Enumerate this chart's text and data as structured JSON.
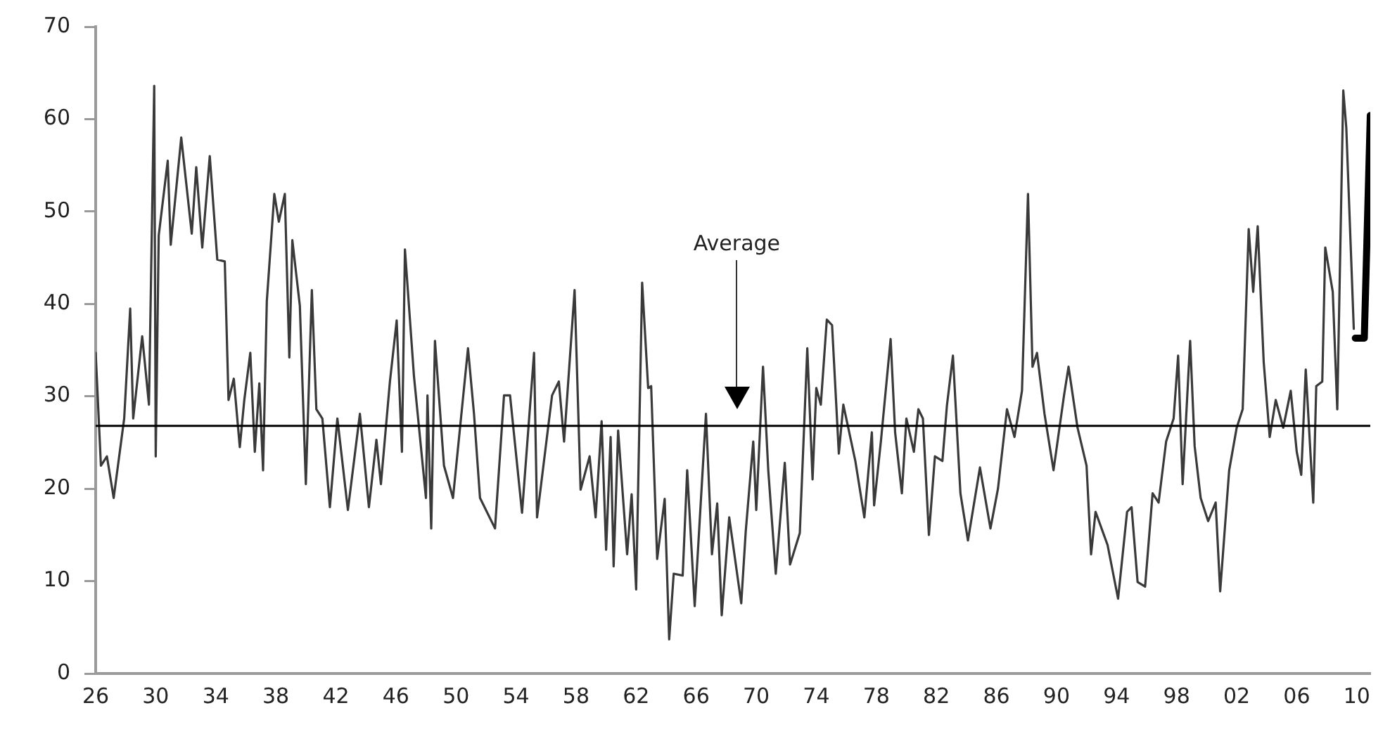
{
  "chart_data": {
    "type": "line",
    "series": [
      {
        "color": "#3a3a3a",
        "x": [
          1926.0,
          1926.35,
          1926.75,
          1927.2,
          1927.9,
          1928.3,
          1928.5,
          1929.1,
          1929.55,
          1929.9,
          1930.0,
          1930.2,
          1930.8,
          1931.0,
          1931.7,
          1932.4,
          1932.7,
          1933.1,
          1933.6,
          1934.1,
          1934.6,
          1934.85,
          1935.2,
          1935.6,
          1935.9,
          1936.3,
          1936.6,
          1936.9,
          1937.15,
          1937.4,
          1937.9,
          1938.2,
          1938.6,
          1938.9,
          1939.1,
          1939.6,
          1940.0,
          1940.4,
          1940.7,
          1941.1,
          1941.6,
          1942.1,
          1942.8,
          1943.6,
          1944.2,
          1944.7,
          1945.0,
          1945.6,
          1946.05,
          1946.4,
          1946.6,
          1947.2,
          1948.0,
          1948.1,
          1948.35,
          1948.6,
          1949.2,
          1949.8,
          1950.8,
          1951.2,
          1951.6,
          1952.6,
          1953.2,
          1953.6,
          1954.4,
          1955.2,
          1955.4,
          1956.4,
          1956.85,
          1957.2,
          1957.9,
          1958.3,
          1958.9,
          1959.3,
          1959.7,
          1960.0,
          1960.3,
          1960.5,
          1960.8,
          1961.4,
          1961.7,
          1962.0,
          1962.4,
          1962.8,
          1963.0,
          1963.4,
          1963.9,
          1964.2,
          1964.5,
          1965.1,
          1965.4,
          1965.9,
          1966.65,
          1967.05,
          1967.4,
          1967.7,
          1968.2,
          1969.0,
          1969.3,
          1969.8,
          1970.0,
          1970.45,
          1970.8,
          1971.3,
          1971.9,
          1972.25,
          1972.9,
          1973.4,
          1973.75,
          1974.0,
          1974.3,
          1974.7,
          1975.05,
          1975.5,
          1975.8,
          1976.6,
          1977.2,
          1977.7,
          1977.85,
          1978.3,
          1978.95,
          1979.25,
          1979.7,
          1980.0,
          1980.5,
          1980.8,
          1981.1,
          1981.5,
          1981.9,
          1982.4,
          1982.7,
          1983.1,
          1983.6,
          1984.1,
          1984.9,
          1985.6,
          1986.1,
          1986.7,
          1987.2,
          1987.7,
          1988.1,
          1988.4,
          1988.7,
          1989.2,
          1989.8,
          1990.5,
          1990.8,
          1991.4,
          1992.0,
          1992.3,
          1992.6,
          1993.4,
          1994.1,
          1994.7,
          1995.0,
          1995.4,
          1995.9,
          1996.4,
          1996.8,
          1997.3,
          1997.8,
          1998.1,
          1998.4,
          1998.9,
          1999.2,
          1999.6,
          2000.1,
          2000.6,
          2000.9,
          2001.5,
          2002.0,
          2002.4,
          2002.8,
          2003.1,
          2003.4,
          2003.8,
          2004.2,
          2004.6,
          2005.1,
          2005.6,
          2006.0,
          2006.3,
          2006.6,
          2007.1,
          2007.3,
          2007.7,
          2007.9,
          2008.4,
          2008.7,
          2009.1,
          2009.3,
          2009.8
        ],
        "values": [
          34.7,
          22.5,
          23.5,
          19,
          27.6,
          39.5,
          27.6,
          36.5,
          29.1,
          63.6,
          23.5,
          47.4,
          55.5,
          46.4,
          58,
          47.6,
          54.8,
          46.1,
          56,
          44.8,
          44.6,
          29.6,
          31.9,
          24.5,
          29.6,
          34.7,
          24,
          31.4,
          22,
          40.3,
          51.9,
          48.9,
          51.9,
          34.2,
          46.9,
          39.8,
          20.5,
          41.5,
          28.6,
          27.6,
          18,
          27.6,
          17.7,
          28.1,
          18,
          25.3,
          20.5,
          31.6,
          38.2,
          24,
          45.9,
          32.2,
          19,
          30.1,
          15.7,
          36,
          22.5,
          19,
          35.2,
          28.1,
          19,
          15.7,
          30.1,
          30.1,
          17.4,
          34.7,
          16.9,
          30.1,
          31.6,
          25.1,
          41.5,
          19.9,
          23.5,
          16.9,
          27.3,
          13.4,
          25.6,
          11.6,
          26.3,
          12.9,
          19.4,
          9.1,
          42.3,
          30.9,
          31.1,
          12.4,
          18.9,
          3.7,
          10.8,
          10.6,
          22,
          7.3,
          28.1,
          12.9,
          18.4,
          6.3,
          16.9,
          7.6,
          15.4,
          25.1,
          17.7,
          33.2,
          22,
          10.8,
          22.8,
          11.8,
          15.2,
          35.2,
          21,
          30.9,
          29.1,
          38.3,
          37.7,
          23.8,
          29.1,
          23,
          16.9,
          26.1,
          18.2,
          25.1,
          36.2,
          26.1,
          19.5,
          27.6,
          24,
          28.6,
          27.6,
          15,
          23.5,
          23,
          29,
          34.4,
          19.5,
          14.4,
          22.3,
          15.7,
          20,
          28.6,
          25.6,
          30.6,
          51.9,
          33.2,
          34.7,
          28.1,
          22,
          30.1,
          33.2,
          26.6,
          22.5,
          12.9,
          17.5,
          13.9,
          8.1,
          17.5,
          18,
          9.9,
          9.4,
          19.5,
          18.5,
          25.1,
          27.6,
          34.4,
          20.5,
          36,
          24.6,
          19,
          16.5,
          18.5,
          8.9,
          22,
          26.6,
          28.6,
          48.1,
          41.3,
          48.4,
          33.7,
          25.6,
          29.6,
          26.6,
          30.6,
          24,
          21.5,
          32.9,
          18.5,
          31.1,
          31.6,
          46.1,
          41.3,
          28.6,
          63.1,
          59.1,
          37.3
        ]
      },
      {
        "color": "#000000",
        "x": [
          2009.9,
          2010.5,
          2010.9
        ],
        "values": [
          36.3,
          36.3,
          60.4
        ]
      }
    ],
    "xlim": [
      1926,
      2010.9
    ],
    "xticks": [
      {
        "value": 1926,
        "label": "26"
      },
      {
        "value": 1930,
        "label": "30"
      },
      {
        "value": 1934,
        "label": "34"
      },
      {
        "value": 1938,
        "label": "38"
      },
      {
        "value": 1942,
        "label": "42"
      },
      {
        "value": 1946,
        "label": "46"
      },
      {
        "value": 1950,
        "label": "50"
      },
      {
        "value": 1954,
        "label": "54"
      },
      {
        "value": 1958,
        "label": "58"
      },
      {
        "value": 1962,
        "label": "62"
      },
      {
        "value": 1966,
        "label": "66"
      },
      {
        "value": 1970,
        "label": "70"
      },
      {
        "value": 1974,
        "label": "74"
      },
      {
        "value": 1978,
        "label": "78"
      },
      {
        "value": 1982,
        "label": "82"
      },
      {
        "value": 1986,
        "label": "86"
      },
      {
        "value": 1990,
        "label": "90"
      },
      {
        "value": 1994,
        "label": "94"
      },
      {
        "value": 1998,
        "label": "98"
      },
      {
        "value": 2002,
        "label": "02"
      },
      {
        "value": 2006,
        "label": "06"
      },
      {
        "value": 2010,
        "label": "10"
      }
    ],
    "ylim": [
      0,
      70
    ],
    "yticks": [
      0,
      10,
      20,
      30,
      40,
      50,
      60,
      70
    ],
    "ref_lines": [
      {
        "axis": "y",
        "value": 26.8,
        "color": "#000000",
        "label": "Average"
      }
    ],
    "marker": "none",
    "line_style": "solid"
  }
}
